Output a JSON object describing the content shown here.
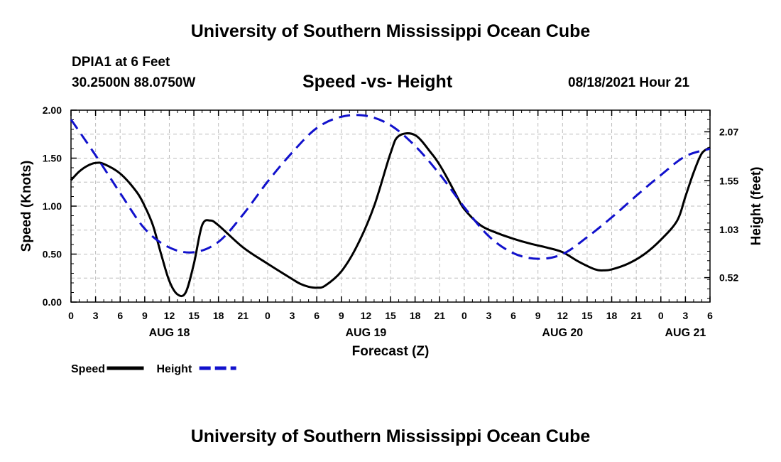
{
  "header": {
    "title_top": "University of Southern Mississippi Ocean Cube",
    "station": "DPIA1 at 6 Feet",
    "coords": "30.2500N  88.0750W",
    "chart_title": "Speed -vs- Height",
    "datetime": "08/18/2021 Hour 21",
    "title_bottom": "University of Southern Mississippi Ocean Cube"
  },
  "chart_data": {
    "type": "line",
    "title": "Speed -vs- Height",
    "xlabel": "Forecast (Z)",
    "ylabel": "Speed (Knots)",
    "y2label": "Height (feet)",
    "x_unit": "hours from AUG 18 00Z",
    "xlim": [
      0,
      78
    ],
    "ylim": [
      0,
      2
    ],
    "y2lim": [
      0.26,
      2.3
    ],
    "grid": true,
    "x_tick_step_hours": 3,
    "x_tick_labels": [
      "0",
      "3",
      "6",
      "9",
      "12",
      "15",
      "18",
      "21",
      "0",
      "3",
      "6",
      "9",
      "12",
      "15",
      "18",
      "21",
      "0",
      "3",
      "6",
      "9",
      "12",
      "15",
      "18",
      "21",
      "0",
      "3",
      "6"
    ],
    "date_labels": [
      {
        "hour": 12,
        "text": "AUG 18"
      },
      {
        "hour": 36,
        "text": "AUG 19"
      },
      {
        "hour": 60,
        "text": "AUG 20"
      },
      {
        "hour": 75,
        "text": "AUG 21"
      }
    ],
    "y_ticks": [
      0.0,
      0.5,
      1.0,
      1.5,
      2.0
    ],
    "y_tick_labels": [
      "0.00",
      "0.50",
      "1.00",
      "1.50",
      "2.00"
    ],
    "y2_ticks": [
      0.52,
      1.03,
      1.55,
      2.07
    ],
    "y2_tick_labels": [
      "0.52",
      "1.03",
      "1.55",
      "2.07"
    ],
    "series": [
      {
        "name": "Speed",
        "axis": "left",
        "color": "#000000",
        "style": "solid",
        "x": [
          0,
          1,
          2,
          3,
          4,
          6,
          8,
          9,
          10,
          11,
          12,
          13,
          14,
          15,
          16,
          17,
          18,
          21,
          24,
          27,
          28,
          29,
          30,
          31,
          33,
          35,
          37,
          39,
          40,
          42,
          44,
          45,
          46,
          47,
          48,
          50,
          52,
          54,
          56,
          58,
          60,
          62,
          64,
          65,
          66,
          68,
          70,
          72,
          74,
          75,
          76,
          77,
          78
        ],
        "values": [
          1.27,
          1.36,
          1.42,
          1.45,
          1.44,
          1.34,
          1.15,
          1.0,
          0.8,
          0.5,
          0.22,
          0.08,
          0.1,
          0.4,
          0.8,
          0.85,
          0.8,
          0.57,
          0.4,
          0.24,
          0.19,
          0.16,
          0.15,
          0.17,
          0.32,
          0.6,
          1.0,
          1.55,
          1.73,
          1.74,
          1.55,
          1.43,
          1.28,
          1.12,
          0.97,
          0.8,
          0.72,
          0.66,
          0.61,
          0.57,
          0.52,
          0.42,
          0.34,
          0.33,
          0.34,
          0.4,
          0.5,
          0.65,
          0.85,
          1.1,
          1.35,
          1.55,
          1.61
        ]
      },
      {
        "name": "Height",
        "axis": "right",
        "color": "#1111cc",
        "style": "dashed",
        "x": [
          0,
          3,
          6,
          9,
          12,
          15,
          18,
          21,
          24,
          27,
          30,
          33,
          36,
          39,
          42,
          45,
          48,
          51,
          54,
          57,
          60,
          63,
          66,
          69,
          72,
          75,
          78
        ],
        "values": [
          2.2,
          1.82,
          1.42,
          1.04,
          0.84,
          0.79,
          0.9,
          1.19,
          1.54,
          1.85,
          2.11,
          2.23,
          2.24,
          2.14,
          1.92,
          1.62,
          1.27,
          0.96,
          0.78,
          0.72,
          0.77,
          0.95,
          1.16,
          1.39,
          1.61,
          1.81,
          1.89
        ]
      }
    ],
    "legend": [
      {
        "label": "Speed",
        "color": "#000000",
        "style": "solid"
      },
      {
        "label": "Height",
        "color": "#1111cc",
        "style": "dashed"
      }
    ],
    "legend_placement": "bottom-left"
  }
}
